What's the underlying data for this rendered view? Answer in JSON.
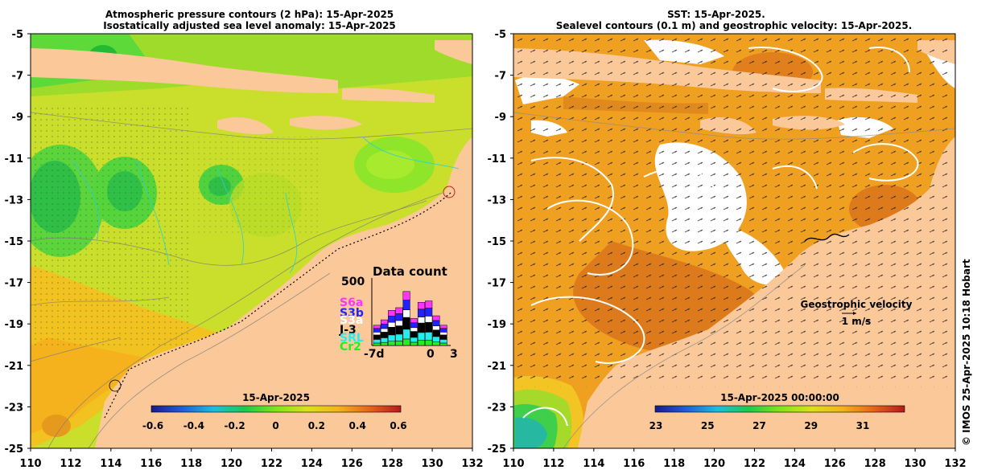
{
  "left_panel": {
    "title_line1": "Atmospheric pressure contours (2 hPa): 15-Apr-2025",
    "title_line2": "Isostatically adjusted sea level anomaly: 15-Apr-2025",
    "colorbar_title": "15-Apr-2025",
    "colorbar_ticks": [
      "-0.6",
      "-0.4",
      "-0.2",
      "0",
      "0.2",
      "0.4",
      "0.6"
    ],
    "colorbar_colors": [
      "#1a1a8c",
      "#1f5fd6",
      "#1fbce0",
      "#1fc94a",
      "#7fe51a",
      "#d9e21a",
      "#f5b31a",
      "#e8641a",
      "#b51a1a"
    ],
    "data_count": {
      "title": "Data count",
      "ymax_label": "500",
      "x_label_left": "-7d",
      "x_label_mid": "0",
      "x_label_right": "3",
      "missions": [
        {
          "name": "S6a",
          "color": "#ff33ff"
        },
        {
          "name": "S3b",
          "color": "#2222ff"
        },
        {
          "name": "S3a",
          "color": "#ffffff"
        },
        {
          "name": "J-3",
          "color": "#000000"
        },
        {
          "name": "SRL",
          "color": "#22eeee"
        },
        {
          "name": "Cr2",
          "color": "#22ee22"
        }
      ],
      "daily_totals": [
        150,
        190,
        260,
        280,
        400,
        200,
        320,
        330,
        220,
        150
      ]
    }
  },
  "right_panel": {
    "title_line1": "SST: 15-Apr-2025.",
    "title_line2": "Sealevel contours (0.1 m) and geostrophic velocity: 15-Apr-2025.",
    "colorbar_title": "15-Apr-2025 00:00:00",
    "colorbar_ticks": [
      "23",
      "25",
      "27",
      "29",
      "31"
    ],
    "colorbar_colors": [
      "#1a1a8c",
      "#1f5fd6",
      "#1fbce0",
      "#1fc94a",
      "#7fe51a",
      "#d9e21a",
      "#f5b31a",
      "#e8641a",
      "#b51a1a"
    ],
    "velocity_legend_title": "Geostrophic velocity",
    "velocity_legend_scale": "1 m/s"
  },
  "axes": {
    "x_ticks": [
      "110",
      "112",
      "114",
      "116",
      "118",
      "120",
      "122",
      "124",
      "126",
      "128",
      "130",
      "132"
    ],
    "y_ticks": [
      "-5",
      "-7",
      "-9",
      "-11",
      "-13",
      "-15",
      "-17",
      "-19",
      "-21",
      "-23",
      "-25"
    ]
  },
  "credit": "© IMOS 25-Apr-2025 10:18 Hobart",
  "colors": {
    "land": "#fbc89a",
    "sla_main": "#c8e02a",
    "sla_green": "#3fd43f",
    "sst_main": "#f0a020",
    "sst_dark": "#d8701a"
  }
}
